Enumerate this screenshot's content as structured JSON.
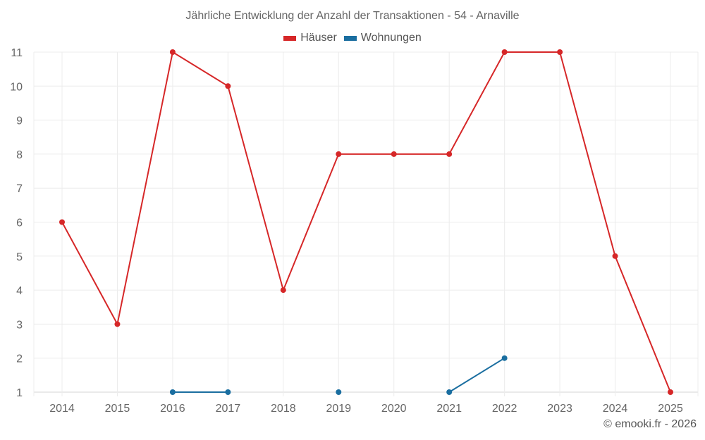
{
  "chart_data": {
    "type": "line",
    "title": "Jährliche Entwicklung der Anzahl der Transaktionen - 54 - Arnaville",
    "xlabel": "",
    "ylabel": "",
    "categories": [
      "2014",
      "2015",
      "2016",
      "2017",
      "2018",
      "2019",
      "2020",
      "2021",
      "2022",
      "2023",
      "2024",
      "2025"
    ],
    "ylim": [
      1,
      11
    ],
    "yticks": [
      1,
      2,
      3,
      4,
      5,
      6,
      7,
      8,
      9,
      10,
      11
    ],
    "grid": true,
    "legend_position": "top",
    "series": [
      {
        "name": "Häuser",
        "color": "#d62728",
        "values": [
          6,
          3,
          11,
          10,
          4,
          8,
          8,
          8,
          11,
          11,
          5,
          1
        ]
      },
      {
        "name": "Wohnungen",
        "color": "#1a6ea0",
        "values": [
          null,
          null,
          1,
          1,
          null,
          1,
          null,
          1,
          2,
          null,
          null,
          null
        ]
      }
    ]
  },
  "legend": [
    {
      "label": "Häuser",
      "color": "#d62728"
    },
    {
      "label": "Wohnungen",
      "color": "#1a6ea0"
    }
  ],
  "credit": "© emooki.fr - 2026"
}
